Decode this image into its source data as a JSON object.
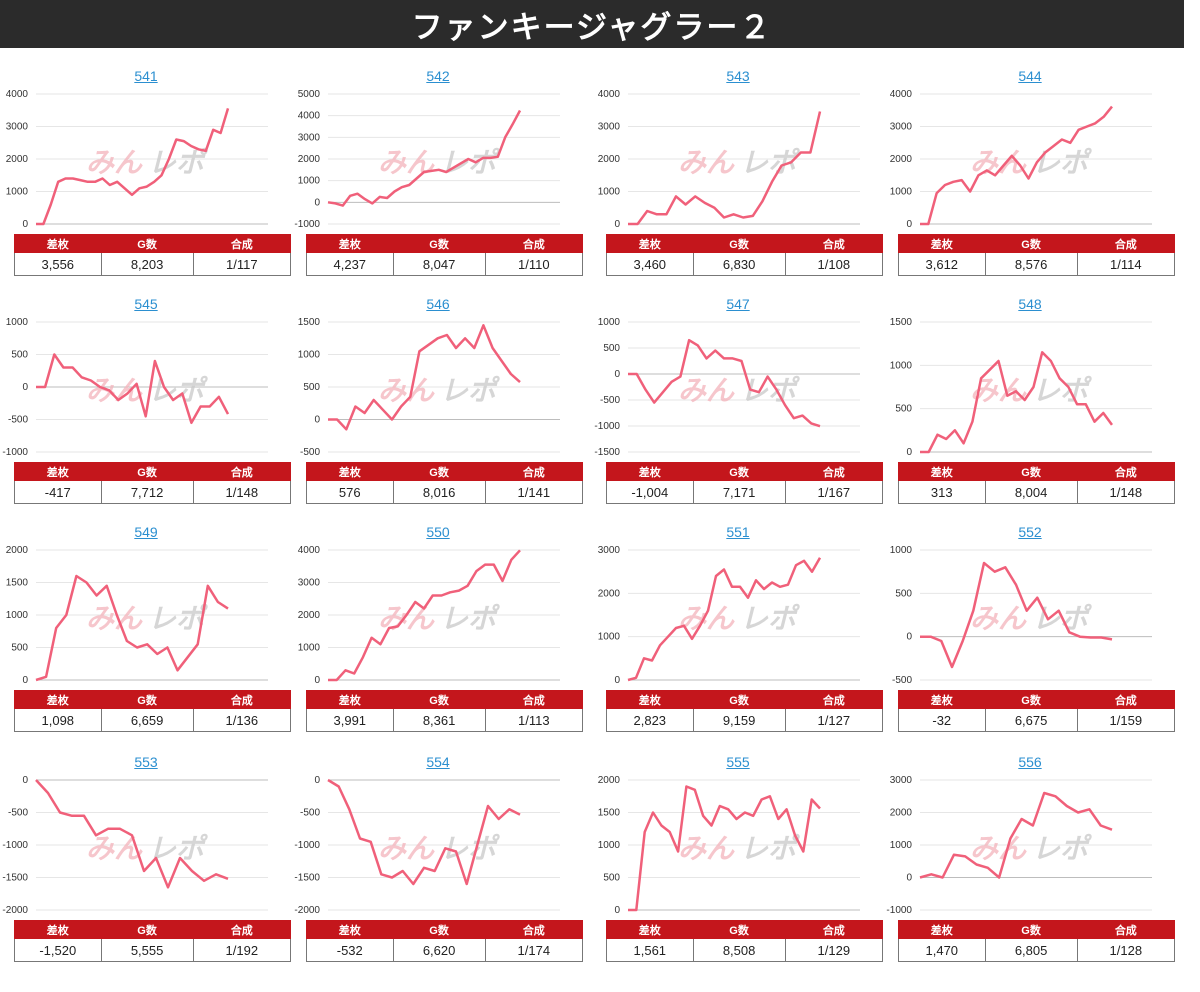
{
  "title": "ファンキージャグラー２",
  "watermark": "みんレポ",
  "colors": {
    "line": "#f0607a",
    "header_bg": "#2b2b2b",
    "table_header": "#c4161c",
    "link": "#2b8fd0",
    "grid": "#e6e6e6",
    "watermark": "#f4b3bb",
    "watermark_gray": "#c9c9c9"
  },
  "table_headers": [
    "差枚",
    "G数",
    "合成"
  ],
  "chart_data": [
    {
      "type": "line",
      "machine": "541",
      "yticks": [
        0,
        1000,
        2000,
        3000,
        4000
      ],
      "ylim": [
        0,
        4000
      ],
      "values": [
        0,
        0,
        600,
        1300,
        1400,
        1400,
        1350,
        1300,
        1300,
        1400,
        1200,
        1300,
        1100,
        900,
        1100,
        1150,
        1300,
        1500,
        2000,
        2600,
        2550,
        2400,
        2300,
        2250,
        2900,
        2800,
        3556
      ],
      "stats": {
        "diff": "3,556",
        "games": "8,203",
        "ratio": "1/117"
      }
    },
    {
      "type": "line",
      "machine": "542",
      "yticks": [
        -1000,
        0,
        1000,
        2000,
        3000,
        4000,
        5000
      ],
      "ylim": [
        -1000,
        5000
      ],
      "values": [
        0,
        -50,
        -150,
        300,
        400,
        150,
        -50,
        250,
        200,
        500,
        700,
        800,
        1100,
        1400,
        1450,
        1500,
        1400,
        1600,
        1800,
        2000,
        1850,
        2050,
        2050,
        2100,
        3000,
        3600,
        4237
      ],
      "stats": {
        "diff": "4,237",
        "games": "8,047",
        "ratio": "1/110"
      }
    },
    {
      "type": "line",
      "machine": "543",
      "yticks": [
        0,
        1000,
        2000,
        3000,
        4000
      ],
      "ylim": [
        0,
        4000
      ],
      "values": [
        0,
        0,
        400,
        300,
        300,
        850,
        600,
        850,
        650,
        500,
        200,
        300,
        200,
        250,
        700,
        1300,
        1800,
        1900,
        2200,
        2200,
        3460
      ],
      "stats": {
        "diff": "3,460",
        "games": "6,830",
        "ratio": "1/108"
      }
    },
    {
      "type": "line",
      "machine": "544",
      "yticks": [
        0,
        1000,
        2000,
        3000,
        4000
      ],
      "ylim": [
        0,
        4000
      ],
      "values": [
        0,
        0,
        950,
        1200,
        1300,
        1350,
        1000,
        1500,
        1650,
        1500,
        1800,
        2100,
        1800,
        1400,
        1900,
        2200,
        2400,
        2600,
        2500,
        2900,
        3000,
        3100,
        3300,
        3612
      ],
      "stats": {
        "diff": "3,612",
        "games": "8,576",
        "ratio": "1/114"
      }
    },
    {
      "type": "line",
      "machine": "545",
      "yticks": [
        -1000,
        -500,
        0,
        500,
        1000
      ],
      "ylim": [
        -1000,
        1000
      ],
      "values": [
        0,
        0,
        500,
        300,
        300,
        150,
        100,
        0,
        -50,
        -200,
        -100,
        50,
        -450,
        400,
        0,
        -200,
        -100,
        -550,
        -300,
        -300,
        -150,
        -417
      ],
      "stats": {
        "diff": "-417",
        "games": "7,712",
        "ratio": "1/148"
      }
    },
    {
      "type": "line",
      "machine": "546",
      "yticks": [
        -500,
        0,
        500,
        1000,
        1500
      ],
      "ylim": [
        -500,
        1500
      ],
      "values": [
        0,
        0,
        -150,
        200,
        100,
        300,
        150,
        0,
        200,
        350,
        1050,
        1150,
        1250,
        1300,
        1100,
        1250,
        1100,
        1450,
        1100,
        900,
        700,
        576
      ],
      "stats": {
        "diff": "576",
        "games": "8,016",
        "ratio": "1/141"
      }
    },
    {
      "type": "line",
      "machine": "547",
      "yticks": [
        -1500,
        -1000,
        -500,
        0,
        500,
        1000
      ],
      "ylim": [
        -1500,
        1000
      ],
      "values": [
        0,
        0,
        -300,
        -550,
        -350,
        -150,
        -50,
        650,
        550,
        300,
        450,
        300,
        300,
        250,
        -300,
        -350,
        -50,
        -300,
        -600,
        -850,
        -800,
        -950,
        -1004
      ],
      "stats": {
        "diff": "-1,004",
        "games": "7,171",
        "ratio": "1/167"
      }
    },
    {
      "type": "line",
      "machine": "548",
      "yticks": [
        0,
        500,
        1000,
        1500
      ],
      "ylim": [
        0,
        1500
      ],
      "values": [
        0,
        0,
        200,
        150,
        250,
        100,
        350,
        850,
        950,
        1050,
        650,
        700,
        600,
        750,
        1150,
        1050,
        850,
        750,
        550,
        550,
        350,
        450,
        313
      ],
      "stats": {
        "diff": "313",
        "games": "8,004",
        "ratio": "1/148"
      }
    },
    {
      "type": "line",
      "machine": "549",
      "yticks": [
        0,
        500,
        1000,
        1500,
        2000
      ],
      "ylim": [
        0,
        2000
      ],
      "values": [
        0,
        50,
        800,
        1000,
        1600,
        1500,
        1300,
        1450,
        1000,
        600,
        500,
        550,
        400,
        500,
        150,
        350,
        550,
        1450,
        1200,
        1098
      ],
      "stats": {
        "diff": "1,098",
        "games": "6,659",
        "ratio": "1/136"
      }
    },
    {
      "type": "line",
      "machine": "550",
      "yticks": [
        0,
        1000,
        2000,
        3000,
        4000
      ],
      "ylim": [
        0,
        4000
      ],
      "values": [
        0,
        0,
        300,
        200,
        700,
        1300,
        1100,
        1600,
        1650,
        2000,
        2400,
        2200,
        2600,
        2600,
        2700,
        2750,
        2900,
        3350,
        3550,
        3550,
        3050,
        3700,
        3991
      ],
      "stats": {
        "diff": "3,991",
        "games": "8,361",
        "ratio": "1/113"
      }
    },
    {
      "type": "line",
      "machine": "551",
      "yticks": [
        0,
        1000,
        2000,
        3000
      ],
      "ylim": [
        0,
        3000
      ],
      "values": [
        0,
        50,
        500,
        450,
        800,
        1000,
        1200,
        1250,
        950,
        1250,
        1600,
        2400,
        2550,
        2150,
        2150,
        1900,
        2300,
        2100,
        2250,
        2150,
        2200,
        2650,
        2750,
        2500,
        2823
      ],
      "stats": {
        "diff": "2,823",
        "games": "9,159",
        "ratio": "1/127"
      }
    },
    {
      "type": "line",
      "machine": "552",
      "yticks": [
        -500,
        0,
        500,
        1000
      ],
      "ylim": [
        -500,
        1000
      ],
      "values": [
        0,
        0,
        -50,
        -350,
        -50,
        300,
        850,
        750,
        800,
        600,
        300,
        450,
        200,
        300,
        50,
        0,
        -10,
        -10,
        -32
      ],
      "stats": {
        "diff": "-32",
        "games": "6,675",
        "ratio": "1/159"
      }
    },
    {
      "type": "line",
      "machine": "553",
      "yticks": [
        -2000,
        -1500,
        -1000,
        -500,
        0
      ],
      "ylim": [
        -2000,
        0
      ],
      "values": [
        0,
        -200,
        -500,
        -550,
        -550,
        -850,
        -750,
        -750,
        -850,
        -1400,
        -1200,
        -1650,
        -1200,
        -1400,
        -1550,
        -1450,
        -1520
      ],
      "stats": {
        "diff": "-1,520",
        "games": "5,555",
        "ratio": "1/192"
      }
    },
    {
      "type": "line",
      "machine": "554",
      "yticks": [
        -2000,
        -1500,
        -1000,
        -500,
        0
      ],
      "ylim": [
        -2000,
        0
      ],
      "values": [
        0,
        -100,
        -450,
        -900,
        -950,
        -1450,
        -1500,
        -1400,
        -1600,
        -1350,
        -1400,
        -1050,
        -1100,
        -1600,
        -1000,
        -400,
        -600,
        -450,
        -532
      ],
      "stats": {
        "diff": "-532",
        "games": "6,620",
        "ratio": "1/174"
      }
    },
    {
      "type": "line",
      "machine": "555",
      "yticks": [
        0,
        500,
        1000,
        1500,
        2000
      ],
      "ylim": [
        0,
        2000
      ],
      "values": [
        0,
        0,
        1200,
        1500,
        1300,
        1200,
        900,
        1900,
        1850,
        1450,
        1300,
        1600,
        1550,
        1400,
        1500,
        1450,
        1700,
        1750,
        1400,
        1550,
        1150,
        900,
        1700,
        1561
      ],
      "stats": {
        "diff": "1,561",
        "games": "8,508",
        "ratio": "1/129"
      }
    },
    {
      "type": "line",
      "machine": "556",
      "yticks": [
        -1000,
        0,
        1000,
        2000,
        3000
      ],
      "ylim": [
        -1000,
        3000
      ],
      "values": [
        0,
        100,
        0,
        700,
        650,
        400,
        300,
        0,
        1200,
        1800,
        1600,
        2600,
        2500,
        2200,
        2000,
        2100,
        1600,
        1470
      ],
      "stats": {
        "diff": "1,470",
        "games": "6,805",
        "ratio": "1/128"
      }
    }
  ]
}
